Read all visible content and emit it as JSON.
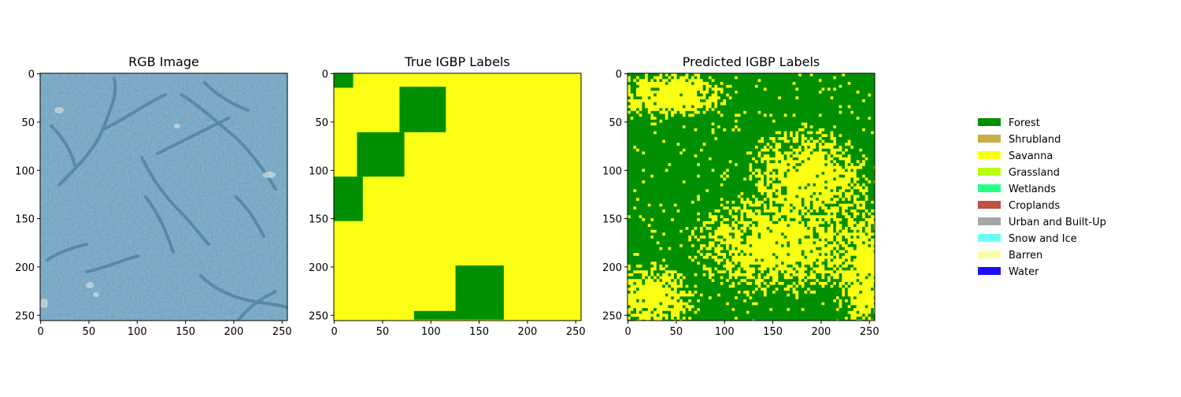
{
  "figure": {
    "panels": [
      {
        "title": "RGB Image"
      },
      {
        "title": "True IGBP Labels"
      },
      {
        "title": "Predicted IGBP Labels"
      }
    ]
  },
  "chart_data": [
    {
      "type": "heatmap",
      "title": "RGB Image",
      "image_size": [
        256,
        256
      ],
      "xlim": [
        0,
        255
      ],
      "ylim": [
        255,
        0
      ],
      "xticks": [
        0,
        50,
        100,
        150,
        200,
        250
      ],
      "yticks": [
        0,
        50,
        100,
        150,
        200,
        250
      ],
      "base_color": "#6d9fbe",
      "features": "dark branching drainage channels on a light blue-green textured canopy; light patches near (40,35), (50,230), (100,110), (120,60)"
    },
    {
      "type": "heatmap",
      "title": "True IGBP Labels",
      "image_size": [
        256,
        256
      ],
      "xlim": [
        0,
        255
      ],
      "ylim": [
        255,
        0
      ],
      "xticks": [
        0,
        50,
        100,
        150,
        200,
        250
      ],
      "yticks": [
        0,
        50,
        100,
        150,
        200,
        250
      ],
      "background_class": "Savanna",
      "regions": [
        {
          "class": "Forest",
          "x": [
            0,
            20
          ],
          "y": [
            0,
            15
          ]
        },
        {
          "class": "Forest",
          "x": [
            68,
            116
          ],
          "y": [
            14,
            61
          ]
        },
        {
          "class": "Forest",
          "x": [
            24,
            73
          ],
          "y": [
            61,
            107
          ]
        },
        {
          "class": "Forest",
          "x": [
            0,
            30
          ],
          "y": [
            107,
            153
          ]
        },
        {
          "class": "Forest",
          "x": [
            126,
            176
          ],
          "y": [
            199,
            247
          ]
        },
        {
          "class": "Forest",
          "x": [
            83,
            176
          ],
          "y": [
            246,
            255
          ]
        }
      ]
    },
    {
      "type": "heatmap",
      "title": "Predicted IGBP Labels",
      "image_size": [
        256,
        256
      ],
      "xlim": [
        0,
        255
      ],
      "ylim": [
        255,
        0
      ],
      "xticks": [
        0,
        50,
        100,
        150,
        200,
        250
      ],
      "yticks": [
        0,
        50,
        100,
        150,
        200,
        250
      ],
      "background_class": "Forest",
      "regions": [
        {
          "class": "Savanna",
          "shape": "ellipse",
          "cx": 155,
          "cy": 175,
          "rx": 80,
          "ry": 45
        },
        {
          "class": "Savanna",
          "shape": "ellipse",
          "cx": 185,
          "cy": 105,
          "rx": 55,
          "ry": 45
        },
        {
          "class": "Savanna",
          "shape": "ellipse",
          "cx": 40,
          "cy": 20,
          "rx": 60,
          "ry": 22
        },
        {
          "class": "Savanna",
          "shape": "ellipse",
          "cx": 20,
          "cy": 230,
          "rx": 45,
          "ry": 30
        },
        {
          "class": "Savanna",
          "shape": "ellipse",
          "cx": 240,
          "cy": 200,
          "rx": 25,
          "ry": 60
        }
      ]
    }
  ],
  "legend": {
    "placement": "right",
    "items": [
      {
        "label": "Forest",
        "color": "#008f00"
      },
      {
        "label": "Shrubland",
        "color": "#c6b044"
      },
      {
        "label": "Savanna",
        "color": "#fbff13"
      },
      {
        "label": "Grassland",
        "color": "#b6ff05"
      },
      {
        "label": "Wetlands",
        "color": "#27ff87"
      },
      {
        "label": "Croplands",
        "color": "#c24f44"
      },
      {
        "label": "Urban and Built-Up",
        "color": "#a5a5a5"
      },
      {
        "label": "Snow and Ice",
        "color": "#69fff8"
      },
      {
        "label": "Barren",
        "color": "#f9ffa4"
      },
      {
        "label": "Water",
        "color": "#1c0dff"
      }
    ]
  }
}
